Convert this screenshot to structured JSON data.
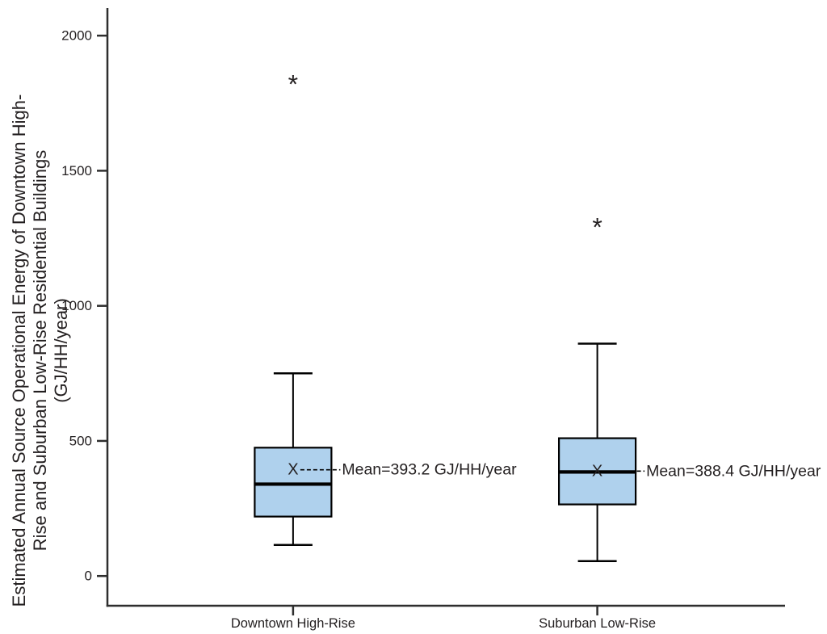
{
  "figure": {
    "background": "#ffffff",
    "text_color": "#231f20",
    "box_fill": "#afd1ed",
    "line_color": "#000000",
    "axis_color": "#2e2e2e"
  },
  "chart_data": {
    "type": "boxplot",
    "title": "",
    "xlabel": "",
    "ylabel": "Estimated Annual Source Operational Energy of Downtown High-Rise and Suburban Low-Rise Residential Buildings (GJ/HH/year)",
    "ylabel_lines": [
      "Estimated Annual Source Operational Energy of Downtown High-",
      "Rise and Suburban Low-Rise Residential Buildings",
      "(GJ/HH/year)"
    ],
    "categories": [
      "Downtown High-Rise",
      "Suburban Low-Rise"
    ],
    "y_ticks": [
      "0",
      "500",
      "1000",
      "1500",
      "2000"
    ],
    "y_tick_values": [
      0,
      500,
      1000,
      1500,
      2000
    ],
    "ylim": [
      -110,
      2102
    ],
    "grid": false,
    "legend": "none",
    "series": [
      {
        "category": "Downtown High-Rise",
        "whisker_low": 115,
        "q1": 220,
        "median": 340,
        "q3": 475,
        "whisker_high": 750,
        "mean": 393.2,
        "mean_marker": "X",
        "mean_annotation": "Mean=393.2 GJ/HH/year",
        "outlier_marker": "*",
        "outliers": [
          1835
        ]
      },
      {
        "category": "Suburban Low-Rise",
        "whisker_low": 55,
        "q1": 265,
        "median": 385,
        "q3": 510,
        "whisker_high": 860,
        "mean": 388.4,
        "mean_marker": "X",
        "mean_annotation": "Mean=388.4 GJ/HH/year",
        "outlier_marker": "*",
        "outliers": [
          1305
        ]
      }
    ]
  }
}
